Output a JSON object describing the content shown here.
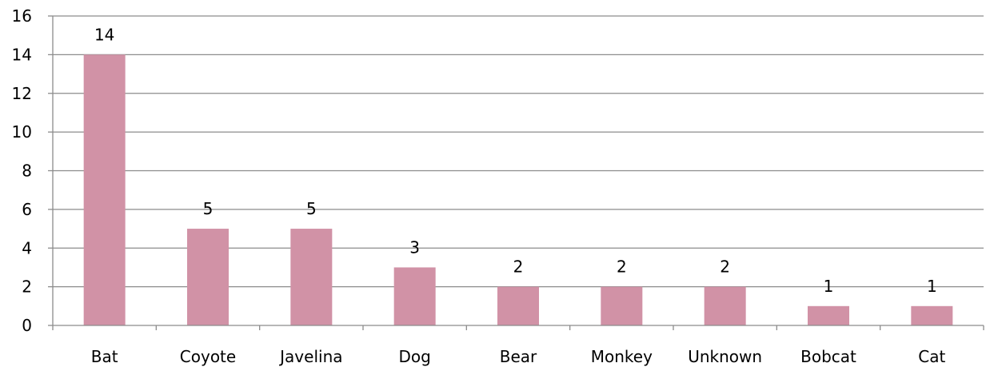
{
  "chart_data": {
    "type": "bar",
    "title": "",
    "xlabel": "",
    "ylabel": "",
    "categories": [
      "Bat",
      "Coyote",
      "Javelina",
      "Dog",
      "Bear",
      "Monkey",
      "Unknown",
      "Bobcat",
      "Cat"
    ],
    "values": [
      14,
      5,
      5,
      3,
      2,
      2,
      2,
      1,
      1
    ],
    "data_labels": [
      "14",
      "5",
      "5",
      "3",
      "2",
      "2",
      "2",
      "1",
      "1"
    ],
    "ylim": [
      0,
      16
    ],
    "y_ticks": [
      0,
      2,
      4,
      6,
      8,
      10,
      12,
      14,
      16
    ],
    "y_tick_labels": [
      "0",
      "2",
      "4",
      "6",
      "8",
      "10",
      "12",
      "14",
      "16"
    ],
    "grid": true,
    "legend": "none",
    "colors": {
      "bar": "#D192A6",
      "grid": "#8C8C8C",
      "axis": "#8C8C8C",
      "text": "#000000"
    }
  }
}
